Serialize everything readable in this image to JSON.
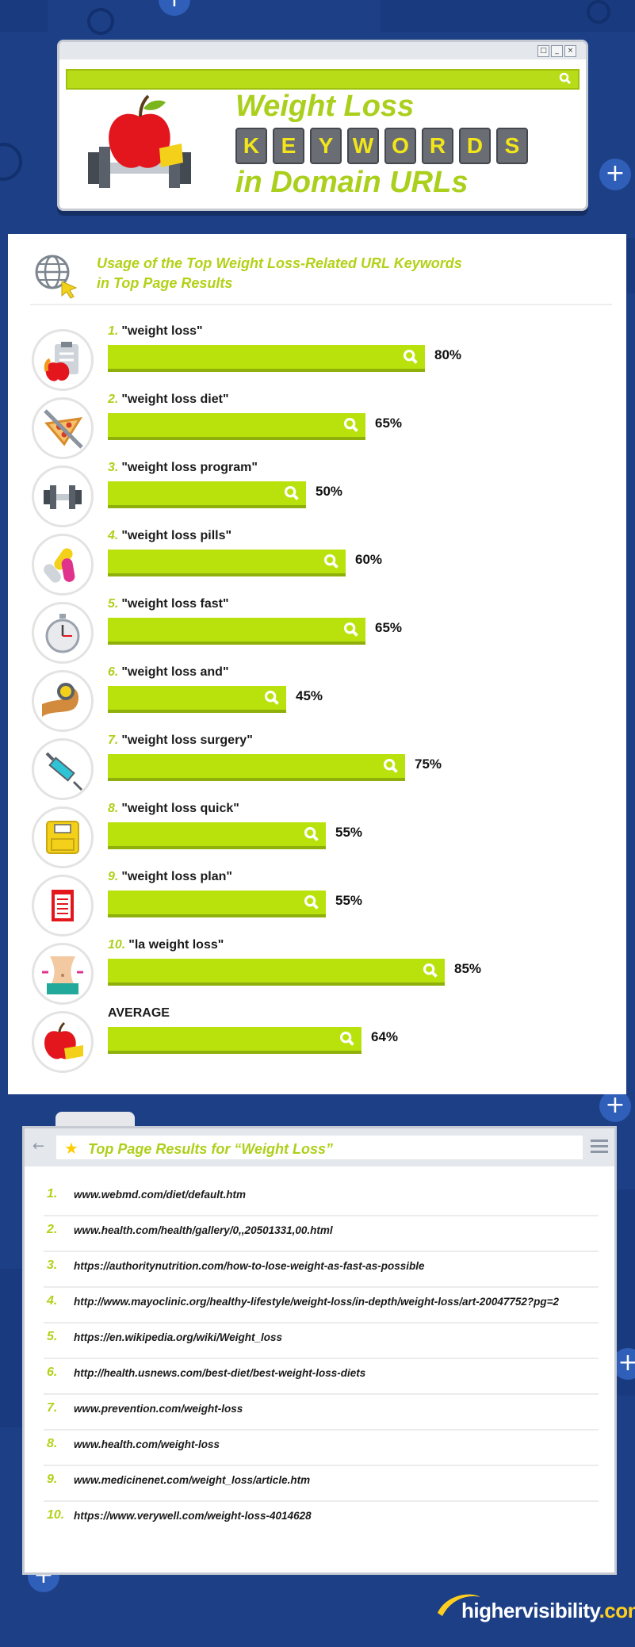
{
  "header": {
    "title_line1": "Weight Loss",
    "keyword_letters": [
      "K",
      "E",
      "Y",
      "W",
      "O",
      "R",
      "D",
      "S"
    ],
    "title_line3": "in Domain URLs"
  },
  "panel": {
    "title_line1": "Usage of the Top Weight Loss-Related URL Keywords",
    "title_line2": "in Top Page Results"
  },
  "chart_data": {
    "type": "bar",
    "orientation": "horizontal",
    "title": "Usage of the Top Weight Loss-Related URL Keywords in Top Page Results",
    "categories": [
      "\"weight loss\"",
      "\"weight loss diet\"",
      "\"weight loss program\"",
      "\"weight loss pills\"",
      "\"weight loss fast\"",
      "\"weight loss and\"",
      "\"weight loss surgery\"",
      "\"weight loss quick\"",
      "\"weight loss plan\"",
      "\"la weight loss\"",
      "AVERAGE"
    ],
    "numbers": [
      "1.",
      "2.",
      "3.",
      "4.",
      "5.",
      "6.",
      "7.",
      "8.",
      "9.",
      "10.",
      ""
    ],
    "values": [
      80,
      65,
      50,
      60,
      65,
      45,
      75,
      55,
      55,
      85,
      64
    ],
    "value_labels": [
      "80%",
      "65%",
      "50%",
      "60%",
      "65%",
      "45%",
      "75%",
      "55%",
      "55%",
      "85%",
      "64%"
    ],
    "icons": [
      "clipboard-apple-icon",
      "no-pizza-icon",
      "dumbbell-icon",
      "pills-icon",
      "stopwatch-icon",
      "flexed-arm-icon",
      "syringe-icon",
      "scale-icon",
      "diet-plan-icon",
      "waist-icon",
      "apple-tape-icon"
    ],
    "xlim": [
      0,
      100
    ],
    "bar_color": "#b9e20d"
  },
  "results": {
    "title": "Top Page Results for “Weight Loss”",
    "items": [
      {
        "num": "1.",
        "url": "www.webmd.com/diet/default.htm"
      },
      {
        "num": "2.",
        "url": "www.health.com/health/gallery/0,,20501331,00.html"
      },
      {
        "num": "3.",
        "url": "https://authoritynutrition.com/how-to-lose-weight-as-fast-as-possible"
      },
      {
        "num": "4.",
        "url": "http://www.mayoclinic.org/healthy-lifestyle/weight-loss/in-depth/weight-loss/art-20047752?pg=2"
      },
      {
        "num": "5.",
        "url": "https://en.wikipedia.org/wiki/Weight_loss"
      },
      {
        "num": "6.",
        "url": "http://health.usnews.com/best-diet/best-weight-loss-diets"
      },
      {
        "num": "7.",
        "url": "www.prevention.com/weight-loss"
      },
      {
        "num": "8.",
        "url": "www.health.com/weight-loss"
      },
      {
        "num": "9.",
        "url": "www.medicinenet.com/weight_loss/article.htm"
      },
      {
        "num": "10.",
        "url": "https://www.verywell.com/weight-loss-4014628"
      }
    ]
  },
  "logo": {
    "name": "highervisibility",
    "tld": ".com"
  }
}
